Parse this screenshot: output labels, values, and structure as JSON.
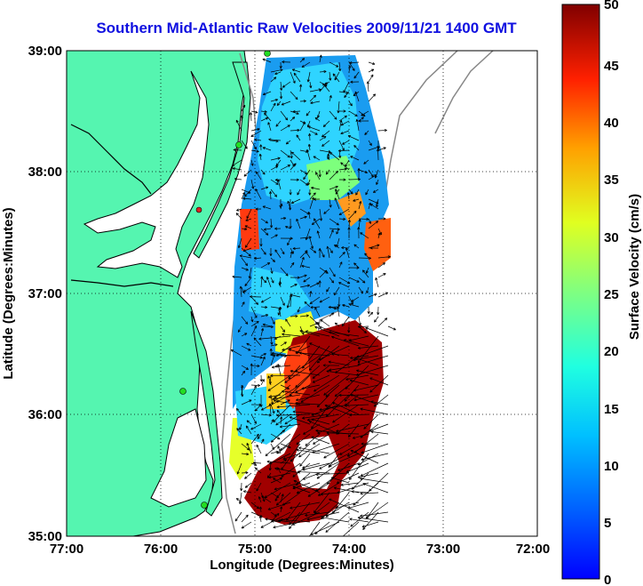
{
  "title": "Southern Mid-Atlantic Raw Velocities 2009/11/21 1400 GMT",
  "xaxis": {
    "label": "Longitude (Degrees:Minutes)",
    "ticks": [
      "77:00",
      "76:00",
      "75:00",
      "74:00",
      "73:00",
      "72:00"
    ],
    "range_deg_west": [
      77,
      72
    ]
  },
  "yaxis": {
    "label": "Latitude (Degrees:Minutes)",
    "ticks": [
      "39:00",
      "38:00",
      "37:00",
      "36:00",
      "35:00"
    ],
    "range_deg_north": [
      35,
      39
    ]
  },
  "colorbar": {
    "label": "Surface Velocity (cm/s)",
    "ticks": [
      "50",
      "45",
      "40",
      "35",
      "30",
      "25",
      "20",
      "15",
      "10",
      "5",
      "0"
    ],
    "range": [
      0,
      50
    ],
    "colormap": "jet"
  },
  "colors": {
    "land": "#55f5b0",
    "water": "#ffffff",
    "coastline": "#000000",
    "isobath": "#888888",
    "title": "#1010e0",
    "station": "#22dd22"
  },
  "grid": "dotted"
}
